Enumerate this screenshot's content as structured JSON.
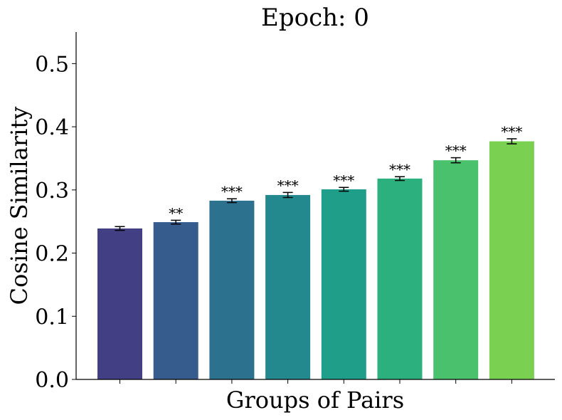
{
  "chart_data": {
    "type": "bar",
    "title": "Epoch: 0",
    "xlabel": "Groups of Pairs",
    "ylabel": "Cosine Similarity",
    "ylim": [
      0,
      0.55
    ],
    "yticks": [
      "0.0",
      "0.1",
      "0.2",
      "0.3",
      "0.4",
      "0.5"
    ],
    "ytick_values": [
      0.0,
      0.1,
      0.2,
      0.3,
      0.4,
      0.5
    ],
    "grid": false,
    "legend": "none",
    "bars": [
      {
        "value": 0.239,
        "error": 0.003,
        "significance": "",
        "color": "#433f85"
      },
      {
        "value": 0.249,
        "error": 0.003,
        "significance": "**",
        "color": "#365c8d"
      },
      {
        "value": 0.283,
        "error": 0.003,
        "significance": "***",
        "color": "#2c728e"
      },
      {
        "value": 0.292,
        "error": 0.004,
        "significance": "***",
        "color": "#23898e"
      },
      {
        "value": 0.301,
        "error": 0.003,
        "significance": "***",
        "color": "#1f9e89"
      },
      {
        "value": 0.318,
        "error": 0.003,
        "significance": "***",
        "color": "#2cb17e"
      },
      {
        "value": 0.347,
        "error": 0.004,
        "significance": "***",
        "color": "#4ac16d"
      },
      {
        "value": 0.377,
        "error": 0.004,
        "significance": "***",
        "color": "#7ad151"
      }
    ]
  }
}
